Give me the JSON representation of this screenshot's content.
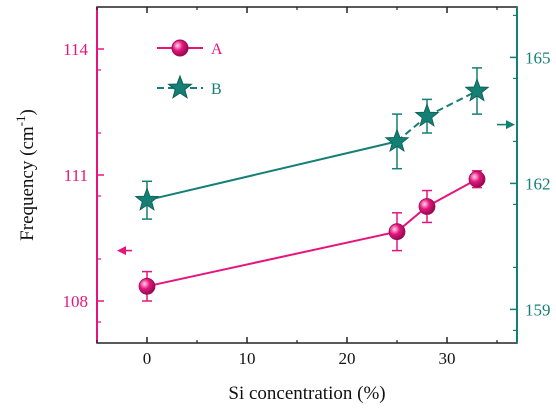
{
  "colors": {
    "frame": "#222222",
    "series_a": "#e6157e",
    "series_b": "#148075"
  },
  "chart_data": {
    "type": "line",
    "xlabel": "Si concentration (%)",
    "ylabel_left": "Frequency (cm",
    "ylabel_left_sup": "-1",
    "ylabel_left_close": ")",
    "xlim": [
      -5,
      37
    ],
    "ylim_left": [
      107,
      115
    ],
    "ylim_right": [
      158.2,
      166.2
    ],
    "x_ticks": [
      0,
      10,
      20,
      30
    ],
    "x_tick_labels": [
      "0",
      "10",
      "20",
      "30"
    ],
    "y_left_ticks": [
      108,
      111,
      114
    ],
    "y_left_tick_labels": [
      "108",
      "111",
      "114"
    ],
    "y_right_ticks": [
      159,
      162,
      165
    ],
    "y_right_tick_labels": [
      "159",
      "162",
      "165"
    ],
    "series": [
      {
        "name": "A",
        "axis": "left",
        "marker": "circle",
        "line": "solid",
        "x": [
          0,
          25,
          28,
          33
        ],
        "y": [
          108.35,
          109.65,
          110.25,
          110.9
        ],
        "err": [
          0.35,
          0.45,
          0.38,
          0.2
        ]
      },
      {
        "name": "B",
        "axis": "right",
        "marker": "star",
        "line": "mixed",
        "x": [
          0,
          25,
          28,
          33
        ],
        "y": [
          161.6,
          163,
          163.6,
          164.2
        ],
        "err": [
          0.45,
          0.65,
          0.4,
          0.55
        ]
      }
    ],
    "arrows": [
      {
        "series": "A",
        "direction": "left",
        "x": [
          -1.5,
          -3.0
        ],
        "y": 109.2
      },
      {
        "series": "B",
        "direction": "right",
        "x": [
          35.0,
          36.8
        ],
        "y": 163.4
      }
    ],
    "legend_position": "top-left"
  }
}
